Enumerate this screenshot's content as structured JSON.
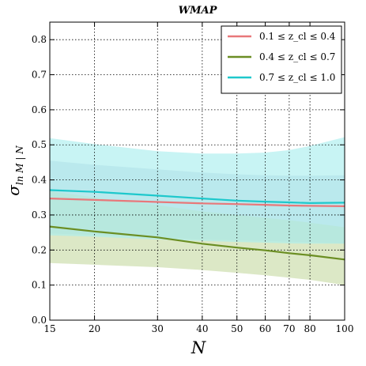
{
  "chart_data": {
    "type": "line",
    "title": "WMAP",
    "xlabel": "N",
    "ylabel": "σ_{ln M | N}",
    "xscale": "log",
    "xlim": [
      15,
      100
    ],
    "ylim": [
      0.0,
      0.85
    ],
    "x_ticks": [
      15,
      20,
      30,
      40,
      50,
      60,
      70,
      80,
      100
    ],
    "y_ticks": [
      0.0,
      0.1,
      0.2,
      0.3,
      0.4,
      0.5,
      0.6,
      0.7,
      0.8
    ],
    "y_tick_labels": [
      "0.0",
      "0.1",
      "0.2",
      "0.3",
      "0.4",
      "0.5",
      "0.6",
      "0.7",
      "0.8"
    ],
    "grid": true,
    "legend_position": "top-right",
    "series": [
      {
        "name": "0.1 ≤ z_cl ≤ 0.4",
        "color": "#e8787a",
        "band_color": "#c0cfe0",
        "x": [
          15,
          20,
          30,
          40,
          50,
          60,
          70,
          80,
          100
        ],
        "y": [
          0.347,
          0.343,
          0.337,
          0.333,
          0.331,
          0.329,
          0.327,
          0.326,
          0.325
        ],
        "lower": [
          0.247,
          0.243,
          0.236,
          0.23,
          0.228,
          0.226,
          0.224,
          0.222,
          0.218
        ],
        "upper": [
          0.455,
          0.443,
          0.43,
          0.421,
          0.416,
          0.413,
          0.412,
          0.412,
          0.413
        ]
      },
      {
        "name": "0.4 ≤ z_cl ≤ 0.7",
        "color": "#6b8e23",
        "band_color": "#c9dba8",
        "x": [
          15,
          20,
          30,
          40,
          50,
          60,
          70,
          80,
          100
        ],
        "y": [
          0.267,
          0.253,
          0.236,
          0.218,
          0.207,
          0.199,
          0.191,
          0.185,
          0.173
        ],
        "lower": [
          0.163,
          0.158,
          0.151,
          0.143,
          0.135,
          0.128,
          0.121,
          0.115,
          0.1
        ],
        "upper": [
          0.368,
          0.35,
          0.328,
          0.31,
          0.3,
          0.292,
          0.285,
          0.278,
          0.265
        ]
      },
      {
        "name": "0.7 ≤ z_cl ≤ 1.0",
        "color": "#1ec8cc",
        "band_color": "#aaeeee",
        "x": [
          15,
          20,
          30,
          40,
          50,
          60,
          70,
          80,
          100
        ],
        "y": [
          0.371,
          0.366,
          0.355,
          0.347,
          0.341,
          0.338,
          0.336,
          0.334,
          0.335
        ],
        "lower": [
          0.242,
          0.238,
          0.23,
          0.226,
          0.223,
          0.221,
          0.219,
          0.218,
          0.218
        ],
        "upper": [
          0.519,
          0.502,
          0.482,
          0.475,
          0.475,
          0.478,
          0.485,
          0.497,
          0.522
        ]
      }
    ]
  }
}
